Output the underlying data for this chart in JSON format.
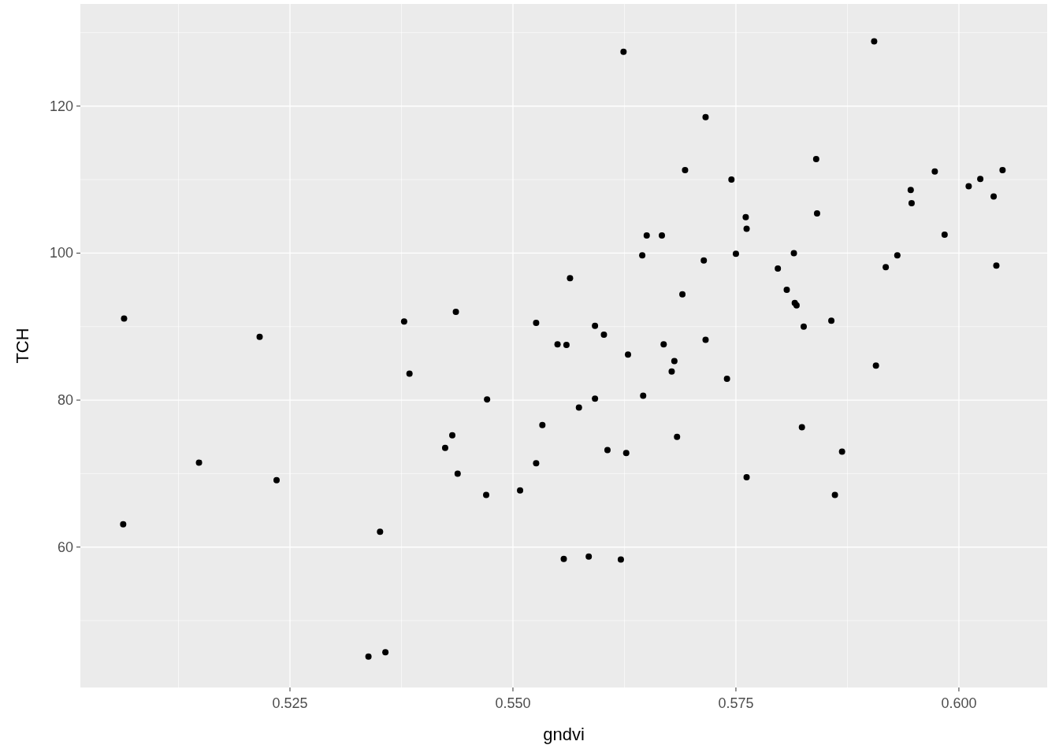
{
  "chart_data": {
    "type": "scatter",
    "xlabel": "gndvi",
    "ylabel": "TCH",
    "xlim": [
      0.5015,
      0.6099
    ],
    "ylim": [
      40.9,
      133.9
    ],
    "xticks": [
      {
        "value": 0.525,
        "label": "0.525"
      },
      {
        "value": 0.55,
        "label": "0.550"
      },
      {
        "value": 0.575,
        "label": "0.575"
      },
      {
        "value": 0.6,
        "label": "0.600"
      }
    ],
    "yticks": [
      60,
      80,
      100,
      120
    ],
    "grid": true,
    "marker": "circle",
    "series": [
      {
        "color": "#000000",
        "x": [
          0.5064,
          0.5063,
          0.5148,
          0.5216,
          0.5235,
          0.5338,
          0.5357,
          0.5351,
          0.5378,
          0.5384,
          0.5436,
          0.5432,
          0.5424,
          0.5438,
          0.5471,
          0.547,
          0.5508,
          0.5526,
          0.5526,
          0.5533,
          0.555,
          0.556,
          0.5564,
          0.5557,
          0.5585,
          0.5574,
          0.5592,
          0.5592,
          0.5602,
          0.5606,
          0.5621,
          0.5624,
          0.5629,
          0.5627,
          0.5645,
          0.565,
          0.5646,
          0.5667,
          0.5669,
          0.5678,
          0.5681,
          0.5684,
          0.569,
          0.5693,
          0.5714,
          0.5716,
          0.5716,
          0.574,
          0.5745,
          0.575,
          0.5761,
          0.5762,
          0.5762,
          0.5797,
          0.5807,
          0.5815,
          0.5816,
          0.5818,
          0.5826,
          0.5824,
          0.584,
          0.5841,
          0.5857,
          0.5861,
          0.5869,
          0.5905,
          0.5907,
          0.5918,
          0.5931,
          0.5946,
          0.5947,
          0.5973,
          0.5984,
          0.6011,
          0.6024,
          0.6039,
          0.6042,
          0.6049
        ],
        "values": [
          91.1,
          63.1,
          71.5,
          88.6,
          69.1,
          45.1,
          45.7,
          62.1,
          90.7,
          83.6,
          92.0,
          75.2,
          73.5,
          70.0,
          80.1,
          67.1,
          67.7,
          90.5,
          71.4,
          76.6,
          87.6,
          87.5,
          96.6,
          58.4,
          58.7,
          79.0,
          90.1,
          80.2,
          88.9,
          73.2,
          58.3,
          127.4,
          86.2,
          72.8,
          99.7,
          102.4,
          80.6,
          102.4,
          87.6,
          83.9,
          85.3,
          75.0,
          94.4,
          111.3,
          99.0,
          118.5,
          88.2,
          82.9,
          110.0,
          99.9,
          104.9,
          103.3,
          69.5,
          97.9,
          95.0,
          100.0,
          93.2,
          92.9,
          90.0,
          76.3,
          112.8,
          105.4,
          90.8,
          67.1,
          73.0,
          128.8,
          84.7,
          98.1,
          99.7,
          108.6,
          106.8,
          111.1,
          102.5,
          109.1,
          110.1,
          107.7,
          98.3,
          111.3
        ]
      }
    ]
  }
}
